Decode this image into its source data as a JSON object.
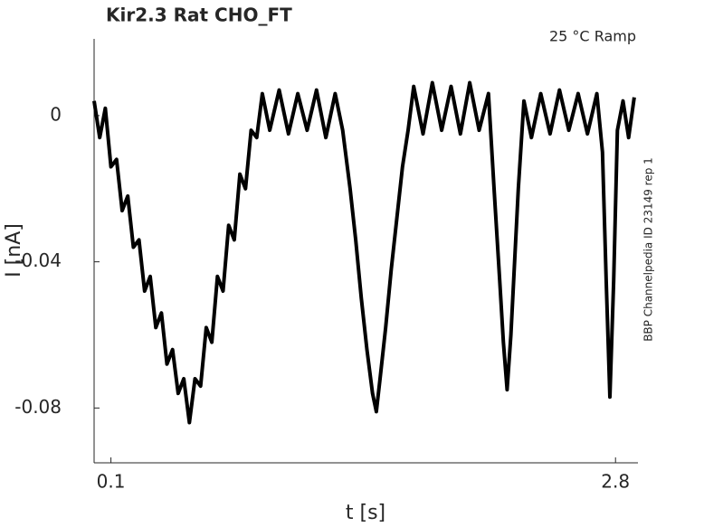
{
  "chart_data": {
    "type": "line",
    "title": "Kir2.3  Rat  CHO_FT",
    "subtitle": "25 °C  Ramp",
    "side_note": "BBP Channelpedia ID 23149 rep 1",
    "x_label": "t [s]",
    "y_label": "I [nA]",
    "xlim": [
      0.01,
      2.92
    ],
    "ylim": [
      -0.095,
      0.021
    ],
    "xticks": [
      0.1,
      2.8
    ],
    "yticks": [
      0,
      -0.04,
      -0.08
    ],
    "series": [
      {
        "name": "I",
        "color": "#000000",
        "x": [
          0.01,
          0.04,
          0.07,
          0.1,
          0.13,
          0.16,
          0.19,
          0.22,
          0.25,
          0.28,
          0.31,
          0.34,
          0.37,
          0.4,
          0.43,
          0.46,
          0.49,
          0.52,
          0.55,
          0.58,
          0.61,
          0.64,
          0.67,
          0.7,
          0.73,
          0.76,
          0.79,
          0.82,
          0.85,
          0.88,
          0.91,
          0.95,
          1.0,
          1.05,
          1.1,
          1.15,
          1.2,
          1.25,
          1.3,
          1.34,
          1.38,
          1.41,
          1.44,
          1.47,
          1.5,
          1.52,
          1.54,
          1.57,
          1.6,
          1.63,
          1.66,
          1.69,
          1.72,
          1.77,
          1.82,
          1.87,
          1.92,
          1.97,
          2.02,
          2.07,
          2.12,
          2.15,
          2.18,
          2.2,
          2.22,
          2.24,
          2.26,
          2.28,
          2.31,
          2.35,
          2.4,
          2.45,
          2.5,
          2.55,
          2.6,
          2.65,
          2.7,
          2.73,
          2.75,
          2.77,
          2.79,
          2.81,
          2.84,
          2.87,
          2.9
        ],
        "values": [
          0.004,
          -0.006,
          0.002,
          -0.014,
          -0.012,
          -0.026,
          -0.022,
          -0.036,
          -0.034,
          -0.048,
          -0.044,
          -0.058,
          -0.054,
          -0.068,
          -0.064,
          -0.076,
          -0.072,
          -0.084,
          -0.072,
          -0.074,
          -0.058,
          -0.062,
          -0.044,
          -0.048,
          -0.03,
          -0.034,
          -0.016,
          -0.02,
          -0.004,
          -0.006,
          0.006,
          -0.004,
          0.007,
          -0.005,
          0.006,
          -0.004,
          0.007,
          -0.006,
          0.006,
          -0.004,
          -0.02,
          -0.034,
          -0.05,
          -0.064,
          -0.076,
          -0.081,
          -0.072,
          -0.058,
          -0.042,
          -0.028,
          -0.014,
          -0.004,
          0.008,
          -0.005,
          0.009,
          -0.004,
          0.008,
          -0.005,
          0.009,
          -0.004,
          0.006,
          -0.02,
          -0.045,
          -0.062,
          -0.075,
          -0.06,
          -0.04,
          -0.02,
          0.004,
          -0.006,
          0.006,
          -0.005,
          0.007,
          -0.004,
          0.006,
          -0.005,
          0.006,
          -0.01,
          -0.045,
          -0.077,
          -0.045,
          -0.004,
          0.004,
          -0.006,
          0.005
        ]
      }
    ]
  }
}
